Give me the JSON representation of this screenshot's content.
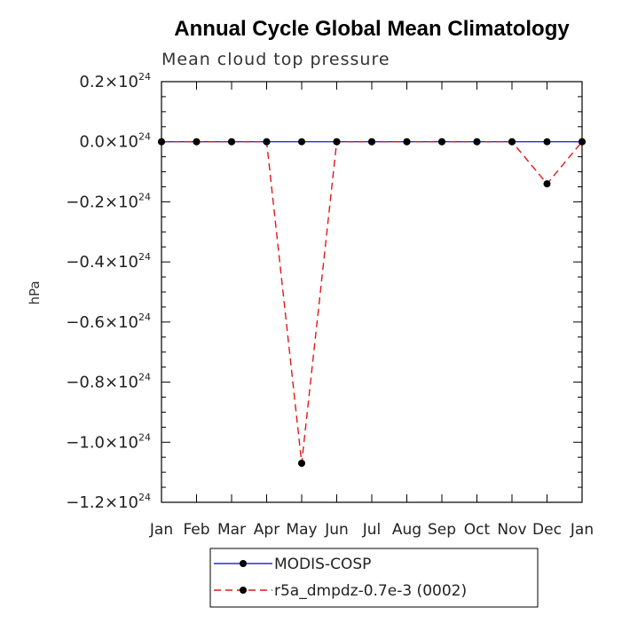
{
  "chart_data": {
    "type": "line",
    "title": "Annual Cycle Global Mean Climatology",
    "subtitle": "Mean cloud top pressure",
    "xlabel": "",
    "ylabel": "hPa",
    "categories": [
      "Jan",
      "Feb",
      "Mar",
      "Apr",
      "May",
      "Jun",
      "Jul",
      "Aug",
      "Sep",
      "Oct",
      "Nov",
      "Dec",
      "Jan"
    ],
    "ylim": [
      -1.2,
      0.2
    ],
    "y_scale_exponent": 24,
    "yticks": [
      {
        "mant": "0.2",
        "exp": "24"
      },
      {
        "mant": "0.0",
        "exp": "24"
      },
      {
        "mant": "−0.2",
        "exp": "24"
      },
      {
        "mant": "−0.4",
        "exp": "24"
      },
      {
        "mant": "−0.6",
        "exp": "24"
      },
      {
        "mant": "−0.8",
        "exp": "24"
      },
      {
        "mant": "−1.0",
        "exp": "24"
      },
      {
        "mant": "−1.2",
        "exp": "24"
      }
    ],
    "ytick_values": [
      0.2,
      0.0,
      -0.2,
      -0.4,
      -0.6,
      -0.8,
      -1.0,
      -1.2
    ],
    "series": [
      {
        "name": "MODIS-COSP",
        "color": "#2b2bd6",
        "dash": "solid",
        "values": [
          0,
          0,
          0,
          0,
          0,
          0,
          0,
          0,
          0,
          0,
          0,
          0,
          0
        ]
      },
      {
        "name": "r5a_dmpdz-0.7e-3 (0002)",
        "color": "#e01818",
        "dash": "dashed",
        "values": [
          0,
          0,
          0,
          0,
          -1.07,
          0,
          0,
          0,
          0,
          0,
          0,
          -0.14,
          0
        ]
      }
    ],
    "legend_position": "bottom-center"
  }
}
